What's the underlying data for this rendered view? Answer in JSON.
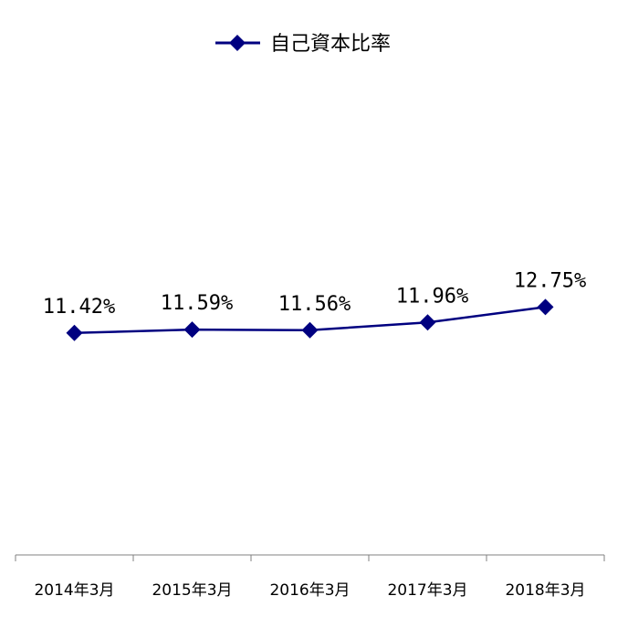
{
  "chart_data": {
    "type": "line",
    "title": "",
    "xlabel": "",
    "ylabel": "",
    "categories": [
      "2014年3月",
      "2015年3月",
      "2016年3月",
      "2017年3月",
      "2018年3月"
    ],
    "series": [
      {
        "name": "自己資本比率",
        "values": [
          11.42,
          11.59,
          11.56,
          11.96,
          12.75
        ],
        "labels": [
          "11.42%",
          "11.59%",
          "11.56%",
          "11.96%",
          "12.75%"
        ],
        "color": "#000080",
        "marker": "diamond"
      }
    ],
    "ylim": [
      0,
      27
    ],
    "grid": false,
    "legend": "top-center"
  }
}
